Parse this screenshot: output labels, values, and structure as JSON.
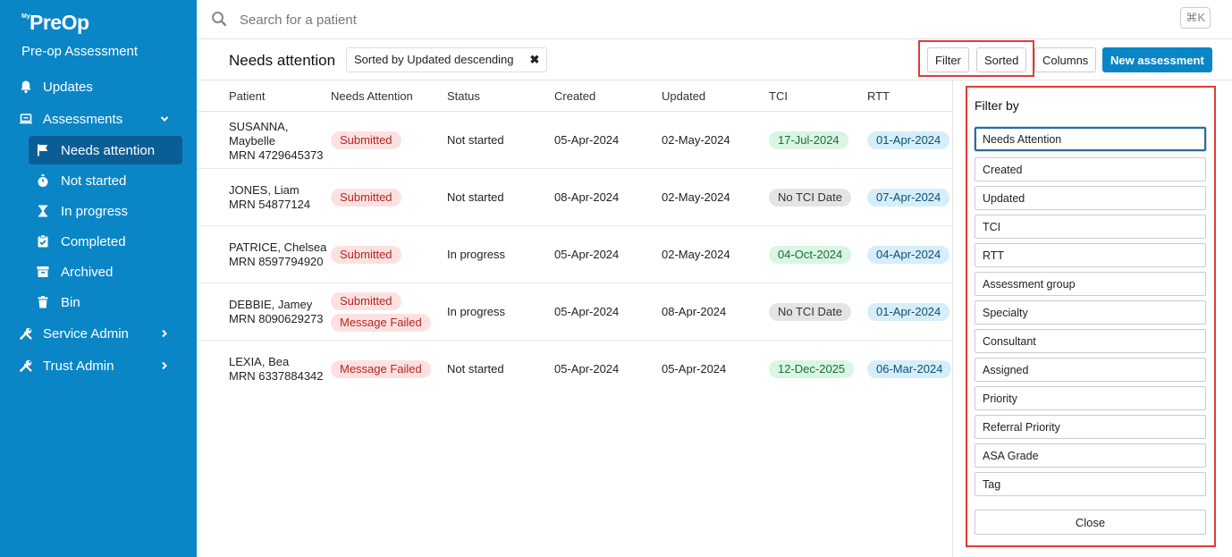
{
  "brand": {
    "prefix": "My",
    "name": "PreOp",
    "subtitle": "Pre-op Assessment"
  },
  "sidebar": {
    "items": [
      {
        "label": "Updates",
        "icon": "bell-icon"
      },
      {
        "label": "Assessments",
        "icon": "laptop-icon",
        "expanded": true
      },
      {
        "label": "Service Admin",
        "icon": "tools-icon"
      },
      {
        "label": "Trust Admin",
        "icon": "tools-icon"
      }
    ],
    "sub_items": [
      {
        "label": "Needs attention",
        "icon": "flag-icon",
        "active": true
      },
      {
        "label": "Not started",
        "icon": "stopwatch-icon"
      },
      {
        "label": "In progress",
        "icon": "hourglass-icon"
      },
      {
        "label": "Completed",
        "icon": "clipboard-check-icon"
      },
      {
        "label": "Archived",
        "icon": "archive-icon"
      },
      {
        "label": "Bin",
        "icon": "trash-icon"
      }
    ]
  },
  "search": {
    "placeholder": "Search for a patient",
    "shortcut": "⌘K"
  },
  "toolbar": {
    "title": "Needs attention",
    "sort_chip": "Sorted by Updated descending",
    "sort_clear": "✖",
    "filter_label": "Filter",
    "sorted_label": "Sorted",
    "columns_label": "Columns",
    "new_label": "New assessment"
  },
  "table": {
    "headers": [
      "Patient",
      "Needs Attention",
      "Status",
      "Created",
      "Updated",
      "TCI",
      "RTT"
    ],
    "rows": [
      {
        "name1": "SUSANNA,",
        "name2": "Maybelle",
        "mrn": "MRN 4729645373",
        "badges": [
          "Submitted"
        ],
        "status": "Not started",
        "created": "05-Apr-2024",
        "updated": "02-May-2024",
        "tci": "17-Jul-2024",
        "tci_type": "green",
        "rtt": "01-Apr-2024"
      },
      {
        "name1": "JONES, Liam",
        "name2": "",
        "mrn": "MRN 54877124",
        "badges": [
          "Submitted"
        ],
        "status": "Not started",
        "created": "08-Apr-2024",
        "updated": "02-May-2024",
        "tci": "No TCI Date",
        "tci_type": "gray",
        "rtt": "07-Apr-2024"
      },
      {
        "name1": "PATRICE, Chelsea",
        "name2": "",
        "mrn": "MRN 8597794920",
        "badges": [
          "Submitted"
        ],
        "status": "In progress",
        "created": "05-Apr-2024",
        "updated": "02-May-2024",
        "tci": "04-Oct-2024",
        "tci_type": "green",
        "rtt": "04-Apr-2024"
      },
      {
        "name1": "DEBBIE, Jamey",
        "name2": "",
        "mrn": "MRN 8090629273",
        "badges": [
          "Submitted",
          "Message Failed"
        ],
        "status": "In progress",
        "created": "05-Apr-2024",
        "updated": "08-Apr-2024",
        "tci": "No TCI Date",
        "tci_type": "gray",
        "rtt": "01-Apr-2024"
      },
      {
        "name1": "LEXIA, Bea",
        "name2": "",
        "mrn": "MRN 6337884342",
        "badges": [
          "Message Failed"
        ],
        "status": "Not started",
        "created": "05-Apr-2024",
        "updated": "05-Apr-2024",
        "tci": "12-Dec-2025",
        "tci_type": "green",
        "rtt": "06-Mar-2024"
      }
    ]
  },
  "filter_panel": {
    "title": "Filter by",
    "options": [
      "Needs Attention",
      "Created",
      "Updated",
      "TCI",
      "RTT",
      "Assessment group",
      "Specialty",
      "Consultant",
      "Assigned",
      "Priority",
      "Referral Priority",
      "ASA Grade",
      "Tag"
    ],
    "close_label": "Close"
  },
  "colors": {
    "sidebar": "#0a86c7",
    "active_nav": "#0b5d95",
    "highlight": "#e53935"
  }
}
